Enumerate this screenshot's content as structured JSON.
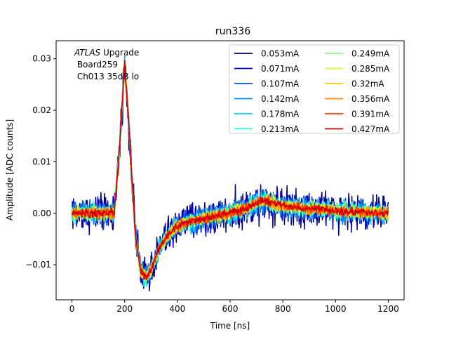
{
  "chart_data": {
    "type": "line",
    "title": "run336",
    "xlabel": "Time [ns]",
    "ylabel": "Amplitude [ADC counts]",
    "xlim": [
      -60,
      1260
    ],
    "ylim": [
      -0.0168,
      0.0335
    ],
    "xticks": [
      0,
      200,
      400,
      600,
      800,
      1000,
      1200
    ],
    "xtick_labels": [
      "0",
      "200",
      "400",
      "600",
      "800",
      "1000",
      "1200"
    ],
    "yticks": [
      -0.01,
      0.0,
      0.01,
      0.02,
      0.03
    ],
    "ytick_labels": [
      "−0.01",
      "0.00",
      "0.01",
      "0.02",
      "0.03"
    ],
    "annotation": {
      "line1_italic": "ATLAS",
      "line1_rest": " Upgrade",
      "line2": " Board259",
      "line3": " Ch013 35dB lo"
    },
    "legend_location": "upper right",
    "shape_points": {
      "t": [
        0,
        160,
        180,
        200,
        215,
        240,
        260,
        280,
        300,
        330,
        360,
        400,
        450,
        500,
        550,
        600,
        650,
        680,
        720,
        760,
        800,
        900,
        1000,
        1100,
        1200
      ],
      "v": [
        0.0,
        0.0,
        0.012,
        0.029,
        0.018,
        -0.004,
        -0.011,
        -0.0125,
        -0.011,
        -0.007,
        -0.0045,
        -0.0025,
        -0.0015,
        -0.001,
        -0.0005,
        0.0,
        0.0008,
        0.0015,
        0.0025,
        0.002,
        0.0015,
        0.0009,
        0.0005,
        0.0002,
        0.0
      ]
    },
    "series": [
      {
        "name": "0.053mA",
        "color": "#00008b",
        "noise": 0.0018
      },
      {
        "name": "0.071mA",
        "color": "#0000cd",
        "noise": 0.0015
      },
      {
        "name": "0.107mA",
        "color": "#0050e6",
        "noise": 0.0012
      },
      {
        "name": "0.142mA",
        "color": "#0090ff",
        "noise": 0.001
      },
      {
        "name": "0.178mA",
        "color": "#00d4ff",
        "noise": 0.0009
      },
      {
        "name": "0.213mA",
        "color": "#29ffce",
        "noise": 0.0008
      },
      {
        "name": "0.249mA",
        "color": "#7dff7a",
        "noise": 0.0007
      },
      {
        "name": "0.285mA",
        "color": "#ceff29",
        "noise": 0.0006
      },
      {
        "name": "0.32mA",
        "color": "#ffc400",
        "noise": 0.0006
      },
      {
        "name": "0.356mA",
        "color": "#ff8c00",
        "noise": 0.0005
      },
      {
        "name": "0.391mA",
        "color": "#ff3b00",
        "noise": 0.0005
      },
      {
        "name": "0.427mA",
        "color": "#cd0000",
        "noise": 0.0004
      }
    ]
  }
}
